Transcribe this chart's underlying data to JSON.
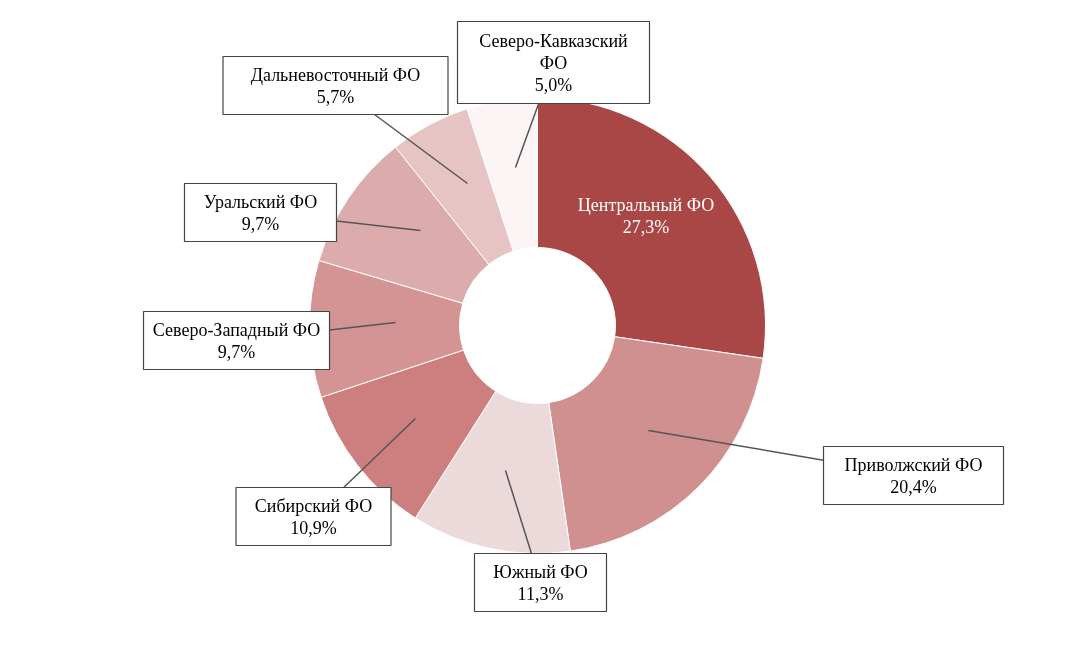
{
  "chart_data": {
    "type": "donut",
    "categories": [
      "Центральный ФО",
      "Приволжский ФО",
      "Южный ФО",
      "Сибирский ФО",
      "Северо-Западный ФО",
      "Уральский ФО",
      "Дальневосточный ФО",
      "Северо-Кавказский ФО"
    ],
    "values": [
      27.3,
      20.4,
      11.3,
      10.9,
      9.7,
      9.7,
      5.7,
      5.0
    ],
    "value_labels": [
      "27,3%",
      "20,4%",
      "11,3%",
      "10,9%",
      "9,7%",
      "9,7%",
      "5,7%",
      "5,0%"
    ],
    "colors": [
      "#a94747",
      "#d09090",
      "#ecdadb",
      "#cd7f7f",
      "#d49494",
      "#dcacac",
      "#e6c4c4",
      "#fdf5f5"
    ]
  }
}
